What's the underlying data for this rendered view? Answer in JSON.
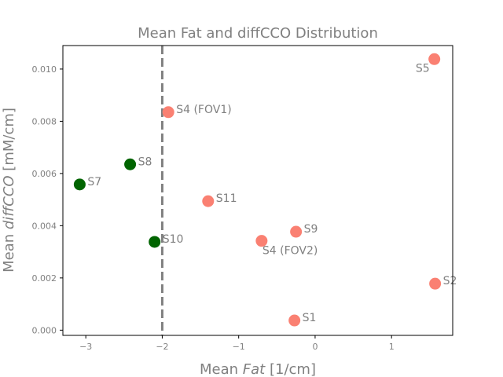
{
  "chart_data": {
    "type": "scatter",
    "title": "Mean Fat and diffCCO Distribution",
    "xlabel": {
      "prefix": "Mean ",
      "italic": "Fat",
      "suffix": " [1/cm]"
    },
    "ylabel": {
      "prefix": "Mean ",
      "italic": "diffCCO",
      "suffix": " [mM/cm]"
    },
    "xlim": [
      -3.3,
      1.8
    ],
    "ylim": [
      -0.0002,
      0.0109
    ],
    "xticks": [
      -3,
      -2,
      -1,
      0,
      1
    ],
    "xtick_labels": [
      "−3",
      "−2",
      "−1",
      "0",
      "1"
    ],
    "yticks": [
      0.0,
      0.002,
      0.004,
      0.006,
      0.008,
      0.01
    ],
    "ytick_labels": [
      "0.000",
      "0.002",
      "0.004",
      "0.006",
      "0.008",
      "0.010"
    ],
    "grid": false,
    "legend": false,
    "reference_line": {
      "x": -2.0,
      "style": "dashed",
      "color": "#808080"
    },
    "colors": {
      "group_a": "#fa8072",
      "group_b": "#006400",
      "text": "#808080"
    },
    "points": [
      {
        "label": "S1",
        "x": -0.27,
        "y": 0.00037,
        "group": "group_a",
        "label_pos": "right"
      },
      {
        "label": "S2",
        "x": 1.57,
        "y": 0.00178,
        "group": "group_a",
        "label_pos": "right"
      },
      {
        "label": "S4 (FOV1)",
        "x": -1.92,
        "y": 0.00835,
        "group": "group_a",
        "label_pos": "right"
      },
      {
        "label": "S4 (FOV2)",
        "x": -0.7,
        "y": 0.00342,
        "group": "group_a",
        "label_pos": "below-right"
      },
      {
        "label": "S5",
        "x": 1.56,
        "y": 0.01038,
        "group": "group_a",
        "label_pos": "below-left"
      },
      {
        "label": "S7",
        "x": -3.08,
        "y": 0.00558,
        "group": "group_b",
        "label_pos": "right"
      },
      {
        "label": "S8",
        "x": -2.42,
        "y": 0.00635,
        "group": "group_b",
        "label_pos": "right"
      },
      {
        "label": "S9",
        "x": -0.25,
        "y": 0.00377,
        "group": "group_a",
        "label_pos": "right"
      },
      {
        "label": "S10",
        "x": -2.1,
        "y": 0.00338,
        "group": "group_b",
        "label_pos": "right"
      },
      {
        "label": "S11",
        "x": -1.4,
        "y": 0.00494,
        "group": "group_a",
        "label_pos": "right"
      }
    ]
  }
}
